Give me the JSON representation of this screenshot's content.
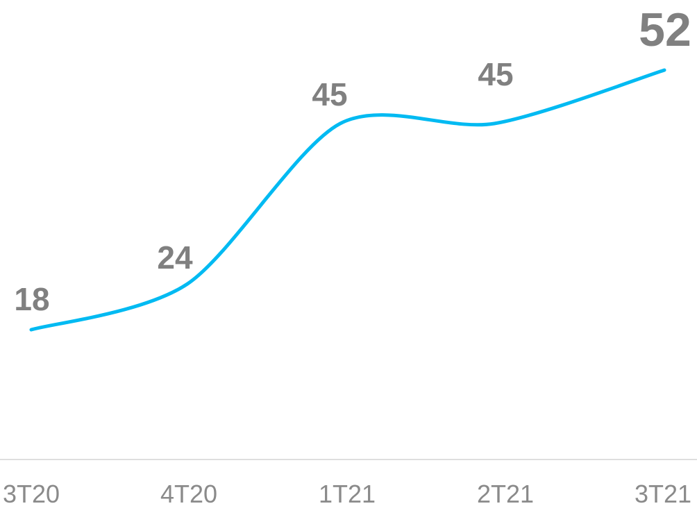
{
  "chart_data": {
    "type": "line",
    "title": "",
    "xlabel": "",
    "ylabel": "",
    "categories": [
      "3T20",
      "4T20",
      "1T21",
      "2T21",
      "3T21"
    ],
    "series": [
      {
        "values": [
          18,
          24,
          45,
          45,
          52
        ],
        "color": "#00baf2",
        "highlight_last": true
      }
    ],
    "label_color": "#808080",
    "highlight_color": "#00aee8",
    "axis_color": "#dedede",
    "grid": false,
    "legend": "none"
  }
}
